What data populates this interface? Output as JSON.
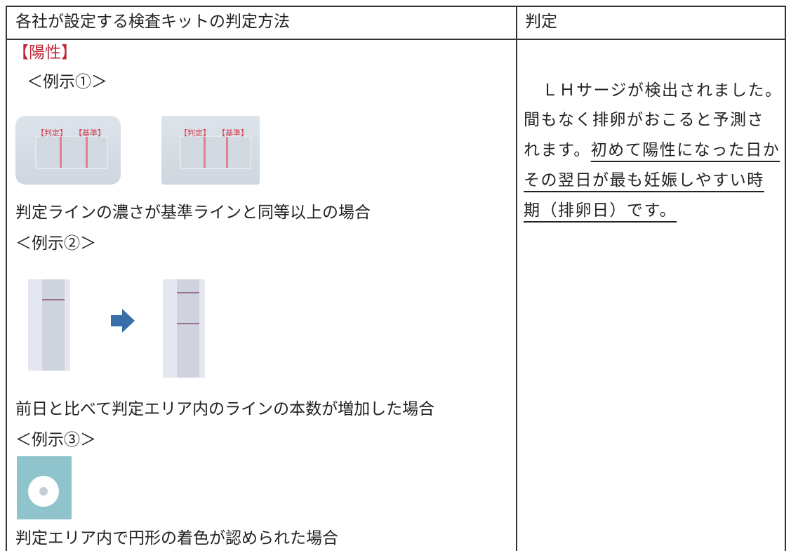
{
  "table": {
    "header": [
      "各社が設定する検査キットの判定方法",
      "判定"
    ],
    "method": {
      "positive": "【陽性】",
      "example1": {
        "label": "＜例示①＞",
        "image_labels": [
          "【判定】",
          "【基準】"
        ],
        "caption": "判定ラインの濃さが基準ラインと同等以上の場合"
      },
      "example2": {
        "label": "＜例示②＞",
        "caption": "前日と比べて判定エリア内のラインの本数が増加した場合"
      },
      "example3": {
        "label": "＜例示③＞",
        "caption": "判定エリア内で円形の着色が認められた場合"
      }
    },
    "judgment": {
      "lines": [
        {
          "text": "ＬＨサージが検出されました。"
        },
        {
          "text": "間もなく排卵がおこると予測さ"
        },
        {
          "text": "れます。",
          "underlined": "初めて陽性になった日か"
        },
        {
          "underlined": "その翌日が最も妊娠しやすい時"
        },
        {
          "underlined": "期（排卵日）です。"
        }
      ]
    }
  }
}
